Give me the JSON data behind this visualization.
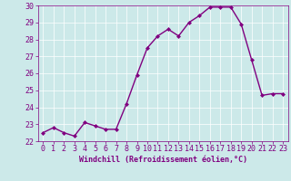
{
  "x": [
    0,
    1,
    2,
    3,
    4,
    5,
    6,
    7,
    8,
    9,
    10,
    11,
    12,
    13,
    14,
    15,
    16,
    17,
    18,
    19,
    20,
    21,
    22,
    23
  ],
  "y": [
    22.5,
    22.8,
    22.5,
    22.3,
    23.1,
    22.9,
    22.7,
    22.7,
    24.2,
    25.9,
    27.5,
    28.2,
    28.6,
    28.2,
    29.0,
    29.4,
    29.9,
    29.9,
    29.9,
    28.9,
    26.8,
    24.7,
    24.8,
    24.8
  ],
  "line_color": "#800080",
  "marker": "D",
  "marker_size": 2,
  "bg_color": "#cce9e9",
  "grid_color": "#ffffff",
  "xlabel": "Windchill (Refroidissement éolien,°C)",
  "xlabel_color": "#800080",
  "tick_color": "#800080",
  "ylim": [
    22,
    30
  ],
  "xlim_min": -0.5,
  "xlim_max": 23.5,
  "yticks": [
    22,
    23,
    24,
    25,
    26,
    27,
    28,
    29,
    30
  ],
  "xticks": [
    0,
    1,
    2,
    3,
    4,
    5,
    6,
    7,
    8,
    9,
    10,
    11,
    12,
    13,
    14,
    15,
    16,
    17,
    18,
    19,
    20,
    21,
    22,
    23
  ],
  "xtick_labels": [
    "0",
    "1",
    "2",
    "3",
    "4",
    "5",
    "6",
    "7",
    "8",
    "9",
    "10",
    "11",
    "12",
    "13",
    "14",
    "15",
    "16",
    "17",
    "18",
    "19",
    "20",
    "21",
    "22",
    "23"
  ],
  "spine_color": "#800080",
  "linewidth": 1.0,
  "tick_fontsize": 6,
  "xlabel_fontsize": 6,
  "xlabel_fontweight": "bold"
}
